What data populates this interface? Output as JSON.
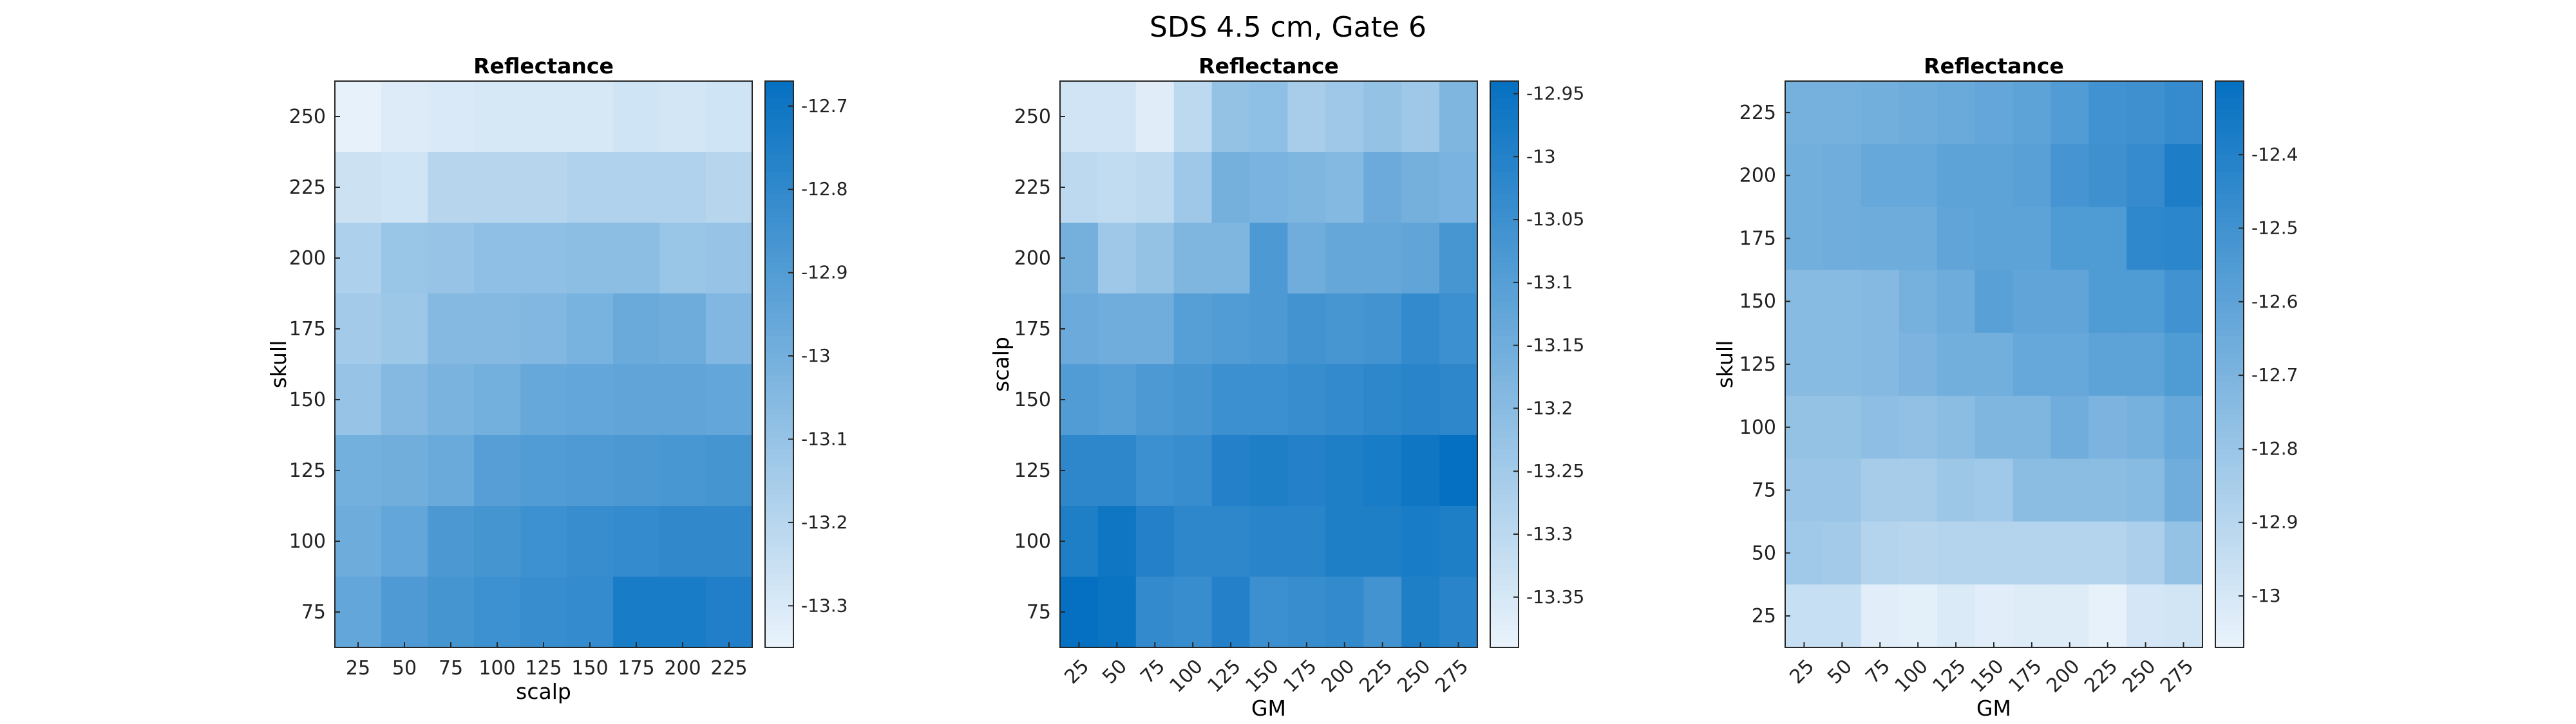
{
  "figure": {
    "title": "SDS 4.5 cm, Gate 6"
  },
  "colormap": {
    "low": "#eaf3fb",
    "high": "#0570c1"
  },
  "chart_data": [
    {
      "type": "heatmap",
      "title": "Reflectance",
      "xlabel": "scalp",
      "ylabel": "skull",
      "x_tick_rotation": 0,
      "x": [
        "25",
        "50",
        "75",
        "100",
        "125",
        "150",
        "175",
        "200",
        "225"
      ],
      "y": [
        "250",
        "225",
        "200",
        "175",
        "150",
        "125",
        "100",
        "75"
      ],
      "values": [
        [
          -13.34,
          -13.31,
          -13.3,
          -13.29,
          -13.29,
          -13.29,
          -13.27,
          -13.28,
          -13.27
        ],
        [
          -13.26,
          -13.27,
          -13.2,
          -13.2,
          -13.2,
          -13.18,
          -13.18,
          -13.18,
          -13.2
        ],
        [
          -13.17,
          -13.11,
          -13.1,
          -13.08,
          -13.08,
          -13.07,
          -13.07,
          -13.11,
          -13.1
        ],
        [
          -13.14,
          -13.12,
          -13.05,
          -13.05,
          -13.04,
          -13.01,
          -12.97,
          -12.98,
          -13.04
        ],
        [
          -13.1,
          -13.05,
          -13.02,
          -13.0,
          -12.96,
          -12.95,
          -12.94,
          -12.94,
          -12.95
        ],
        [
          -13.0,
          -12.99,
          -12.97,
          -12.91,
          -12.9,
          -12.89,
          -12.88,
          -12.87,
          -12.86
        ],
        [
          -12.98,
          -12.95,
          -12.88,
          -12.86,
          -12.84,
          -12.82,
          -12.81,
          -12.8,
          -12.8
        ],
        [
          -12.95,
          -12.89,
          -12.86,
          -12.84,
          -12.82,
          -12.81,
          -12.73,
          -12.73,
          -12.75
        ]
      ],
      "colorbar": {
        "ticks": [
          -12.7,
          -12.8,
          -12.9,
          -13,
          -13.1,
          -13.2,
          -13.3
        ],
        "range": [
          -13.35,
          -12.67
        ]
      }
    },
    {
      "type": "heatmap",
      "title": "Reflectance",
      "xlabel": "GM",
      "ylabel": "scalp",
      "x_tick_rotation": -45,
      "x": [
        "25",
        "50",
        "75",
        "100",
        "125",
        "150",
        "175",
        "200",
        "225",
        "250",
        "275"
      ],
      "y": [
        "250",
        "225",
        "200",
        "175",
        "150",
        "125",
        "100",
        "75"
      ],
      "values": [
        [
          -13.34,
          -13.34,
          -13.37,
          -13.3,
          -13.22,
          -13.21,
          -13.26,
          -13.24,
          -13.22,
          -13.24,
          -13.18
        ],
        [
          -13.3,
          -13.31,
          -13.3,
          -13.24,
          -13.16,
          -13.17,
          -13.18,
          -13.19,
          -13.14,
          -13.16,
          -13.17
        ],
        [
          -13.16,
          -13.24,
          -13.22,
          -13.18,
          -13.18,
          -13.08,
          -13.15,
          -13.13,
          -13.13,
          -13.12,
          -13.07
        ],
        [
          -13.14,
          -13.15,
          -13.15,
          -13.1,
          -13.09,
          -13.08,
          -13.06,
          -13.07,
          -13.06,
          -13.03,
          -13.05
        ],
        [
          -13.09,
          -13.1,
          -13.08,
          -13.07,
          -13.05,
          -13.05,
          -13.04,
          -13.03,
          -13.02,
          -13.01,
          -13.02
        ],
        [
          -13.02,
          -13.02,
          -13.05,
          -13.04,
          -13.0,
          -12.99,
          -13.0,
          -12.99,
          -12.98,
          -12.96,
          -12.94
        ],
        [
          -12.99,
          -12.96,
          -13.0,
          -13.02,
          -13.02,
          -13.01,
          -13.01,
          -12.99,
          -12.99,
          -12.98,
          -12.99
        ],
        [
          -12.93,
          -12.95,
          -13.03,
          -13.04,
          -13.0,
          -13.05,
          -13.04,
          -13.03,
          -13.06,
          -12.99,
          -13.01
        ]
      ],
      "colorbar": {
        "ticks": [
          -12.95,
          -13,
          -13.05,
          -13.1,
          -13.15,
          -13.2,
          -13.25,
          -13.3,
          -13.35
        ],
        "range": [
          -13.39,
          -12.94
        ]
      }
    },
    {
      "type": "heatmap",
      "title": "Reflectance",
      "xlabel": "GM",
      "ylabel": "skull",
      "x_tick_rotation": -45,
      "x": [
        "25",
        "50",
        "75",
        "100",
        "125",
        "150",
        "175",
        "200",
        "225",
        "250",
        "275"
      ],
      "y": [
        "225",
        "200",
        "175",
        "150",
        "125",
        "100",
        "75",
        "50",
        "25"
      ],
      "values": [
        [
          -12.68,
          -12.68,
          -12.67,
          -12.65,
          -12.64,
          -12.62,
          -12.6,
          -12.56,
          -12.5,
          -12.49,
          -12.46
        ],
        [
          -12.67,
          -12.66,
          -12.63,
          -12.63,
          -12.6,
          -12.6,
          -12.58,
          -12.52,
          -12.49,
          -12.46,
          -12.38
        ],
        [
          -12.67,
          -12.66,
          -12.65,
          -12.65,
          -12.61,
          -12.6,
          -12.6,
          -12.55,
          -12.55,
          -12.44,
          -12.43
        ],
        [
          -12.74,
          -12.74,
          -12.73,
          -12.68,
          -12.65,
          -12.58,
          -12.61,
          -12.61,
          -12.55,
          -12.55,
          -12.5
        ],
        [
          -12.74,
          -12.74,
          -12.73,
          -12.7,
          -12.67,
          -12.67,
          -12.63,
          -12.63,
          -12.6,
          -12.6,
          -12.55
        ],
        [
          -12.78,
          -12.78,
          -12.76,
          -12.77,
          -12.75,
          -12.71,
          -12.71,
          -12.66,
          -12.7,
          -12.68,
          -12.63
        ],
        [
          -12.8,
          -12.8,
          -12.84,
          -12.84,
          -12.81,
          -12.82,
          -12.75,
          -12.75,
          -12.75,
          -12.74,
          -12.66
        ],
        [
          -12.82,
          -12.83,
          -12.89,
          -12.9,
          -12.89,
          -12.89,
          -12.89,
          -12.89,
          -12.89,
          -12.86,
          -12.78
        ],
        [
          -12.95,
          -12.95,
          -13.04,
          -13.05,
          -13.02,
          -13.04,
          -13.03,
          -13.03,
          -13.06,
          -13.0,
          -12.99
        ]
      ],
      "colorbar": {
        "ticks": [
          -12.4,
          -12.5,
          -12.6,
          -12.7,
          -12.8,
          -12.9,
          -13
        ],
        "range": [
          -13.07,
          -12.3
        ]
      }
    }
  ]
}
